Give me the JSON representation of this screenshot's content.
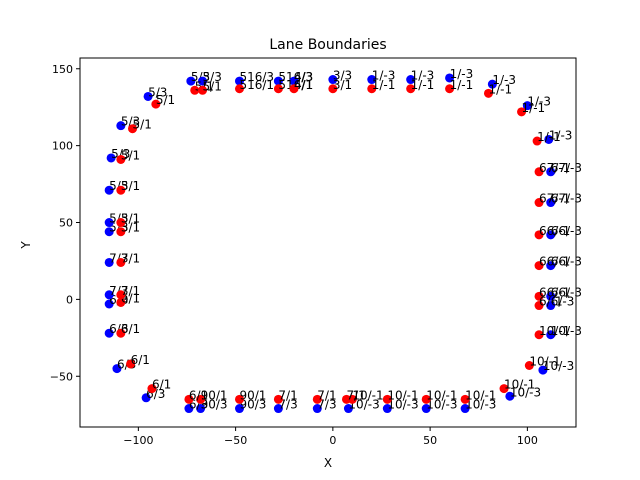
{
  "chart_data": {
    "type": "scatter",
    "title": "Lane Boundaries",
    "xlabel": "X",
    "ylabel": "Y",
    "xlim": [
      -130,
      125
    ],
    "ylim": [
      -83,
      157
    ],
    "xticks": [
      -100,
      -50,
      0,
      50,
      100
    ],
    "yticks": [
      -50,
      0,
      50,
      100,
      150
    ],
    "grid": false,
    "colors": {
      "blue": "#0000ff",
      "red": "#ff0000"
    },
    "series": [
      {
        "color": "blue",
        "points": [
          {
            "x": -73,
            "y": 142,
            "label": "5/3"
          },
          {
            "x": -67,
            "y": 142,
            "label": "5/3"
          },
          {
            "x": -48,
            "y": 142,
            "label": "516/3"
          },
          {
            "x": -28,
            "y": 142,
            "label": "516/3"
          },
          {
            "x": -20,
            "y": 142,
            "label": "4/3"
          },
          {
            "x": 0,
            "y": 143,
            "label": "3/3"
          },
          {
            "x": 20,
            "y": 143,
            "label": "1/-3"
          },
          {
            "x": 40,
            "y": 143,
            "label": "1/-3"
          },
          {
            "x": 60,
            "y": 144,
            "label": "1/-3"
          },
          {
            "x": 82,
            "y": 140,
            "label": "1/-3"
          },
          {
            "x": 100,
            "y": 126,
            "label": "1/-3"
          },
          {
            "x": 111,
            "y": 104,
            "label": "1/-3"
          },
          {
            "x": 112,
            "y": 83,
            "label": "67/-3"
          },
          {
            "x": 112,
            "y": 63,
            "label": "67/-3"
          },
          {
            "x": 112,
            "y": 42,
            "label": "66/-3"
          },
          {
            "x": 112,
            "y": 22,
            "label": "66/-3"
          },
          {
            "x": 112,
            "y": 2,
            "label": "66/-3"
          },
          {
            "x": 112,
            "y": -4,
            "label": "6/-3"
          },
          {
            "x": 112,
            "y": -23,
            "label": "10/-3"
          },
          {
            "x": 108,
            "y": -46,
            "label": "10/-3"
          },
          {
            "x": 91,
            "y": -63,
            "label": "10/-3"
          },
          {
            "x": 68,
            "y": -71,
            "label": "10/-3"
          },
          {
            "x": 48,
            "y": -71,
            "label": "10/-3"
          },
          {
            "x": 28,
            "y": -71,
            "label": "10/-3"
          },
          {
            "x": 8,
            "y": -71,
            "label": "10/-3"
          },
          {
            "x": -8,
            "y": -71,
            "label": "7/3"
          },
          {
            "x": -28,
            "y": -71,
            "label": "7/3"
          },
          {
            "x": -48,
            "y": -71,
            "label": "90/3"
          },
          {
            "x": -68,
            "y": -71,
            "label": "90/3"
          },
          {
            "x": -74,
            "y": -71,
            "label": "6/3"
          },
          {
            "x": -96,
            "y": -64,
            "label": "6/3"
          },
          {
            "x": -111,
            "y": -45,
            "label": "6/3"
          },
          {
            "x": -115,
            "y": -22,
            "label": "6/3"
          },
          {
            "x": -115,
            "y": -3,
            "label": "6/3"
          },
          {
            "x": -115,
            "y": 3,
            "label": "7/3"
          },
          {
            "x": -115,
            "y": 24,
            "label": "7/3"
          },
          {
            "x": -115,
            "y": 44,
            "label": "5/3"
          },
          {
            "x": -115,
            "y": 50,
            "label": "5/3"
          },
          {
            "x": -115,
            "y": 71,
            "label": "5/3"
          },
          {
            "x": -114,
            "y": 92,
            "label": "5/3"
          },
          {
            "x": -109,
            "y": 113,
            "label": "5/3"
          },
          {
            "x": -95,
            "y": 132,
            "label": "5/3"
          }
        ]
      },
      {
        "color": "red",
        "points": [
          {
            "x": -71,
            "y": 136,
            "label": "5/1"
          },
          {
            "x": -67,
            "y": 136,
            "label": "5/1"
          },
          {
            "x": -48,
            "y": 137,
            "label": "516/1"
          },
          {
            "x": -28,
            "y": 137,
            "label": "516/1"
          },
          {
            "x": -20,
            "y": 137,
            "label": "4/1"
          },
          {
            "x": 0,
            "y": 137,
            "label": "3/1"
          },
          {
            "x": 20,
            "y": 137,
            "label": "1/-1"
          },
          {
            "x": 40,
            "y": 137,
            "label": "1/-1"
          },
          {
            "x": 60,
            "y": 137,
            "label": "1/-1"
          },
          {
            "x": 80,
            "y": 134,
            "label": "1/-1"
          },
          {
            "x": 97,
            "y": 122,
            "label": "1/-1"
          },
          {
            "x": 105,
            "y": 103,
            "label": "1/-1"
          },
          {
            "x": 106,
            "y": 83,
            "label": "67/-1"
          },
          {
            "x": 106,
            "y": 63,
            "label": "67/-1"
          },
          {
            "x": 106,
            "y": 42,
            "label": "66/-1"
          },
          {
            "x": 106,
            "y": 22,
            "label": "66/-1"
          },
          {
            "x": 106,
            "y": 2,
            "label": "66/-1"
          },
          {
            "x": 106,
            "y": -4,
            "label": "6/-1"
          },
          {
            "x": 106,
            "y": -23,
            "label": "10/-1"
          },
          {
            "x": 101,
            "y": -43,
            "label": "10/-1"
          },
          {
            "x": 88,
            "y": -58,
            "label": "10/-1"
          },
          {
            "x": 68,
            "y": -65,
            "label": "10/-1"
          },
          {
            "x": 48,
            "y": -65,
            "label": "10/-1"
          },
          {
            "x": 28,
            "y": -65,
            "label": "10/-1"
          },
          {
            "x": 10,
            "y": -65,
            "label": "10/-1"
          },
          {
            "x": 7,
            "y": -65,
            "label": "7/1"
          },
          {
            "x": -8,
            "y": -65,
            "label": "7/1"
          },
          {
            "x": -28,
            "y": -65,
            "label": "7/1"
          },
          {
            "x": -48,
            "y": -65,
            "label": "90/1"
          },
          {
            "x": -68,
            "y": -65,
            "label": "90/1"
          },
          {
            "x": -74,
            "y": -65,
            "label": "6/1"
          },
          {
            "x": -93,
            "y": -58,
            "label": "6/1"
          },
          {
            "x": -104,
            "y": -42,
            "label": "6/1"
          },
          {
            "x": -109,
            "y": -22,
            "label": "6/1"
          },
          {
            "x": -109,
            "y": -2,
            "label": "6/1"
          },
          {
            "x": -109,
            "y": 3,
            "label": "7/1"
          },
          {
            "x": -109,
            "y": 24,
            "label": "7/1"
          },
          {
            "x": -109,
            "y": 44,
            "label": "5/1"
          },
          {
            "x": -109,
            "y": 50,
            "label": "5/1"
          },
          {
            "x": -109,
            "y": 71,
            "label": "5/1"
          },
          {
            "x": -109,
            "y": 91,
            "label": "5/1"
          },
          {
            "x": -103,
            "y": 111,
            "label": "5/1"
          },
          {
            "x": -91,
            "y": 127,
            "label": "5/1"
          }
        ]
      }
    ]
  }
}
